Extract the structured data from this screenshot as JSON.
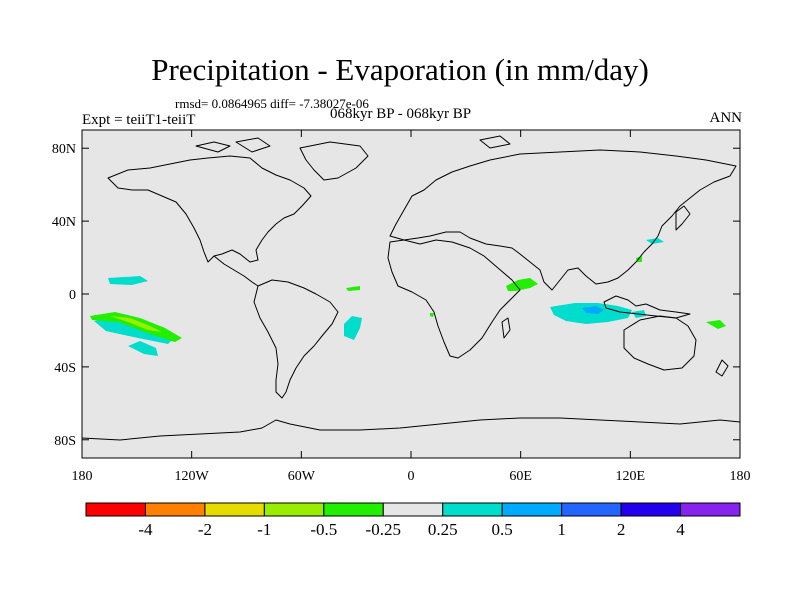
{
  "title": "Precipitation - Evaporation (in mm/day)",
  "stats_line": "rmsd= 0.0864965 diff= -7.38027e-06",
  "period_line": "068kyr BP - 068kyr BP",
  "experiment": "Expt = teiiT1-teiiT",
  "season": "ANN",
  "map": {
    "background_color": "#e6e6e6",
    "lon_ticks": [
      "180",
      "120W",
      "60W",
      "0",
      "60E",
      "120E",
      "180"
    ],
    "lat_ticks": [
      "80N",
      "40N",
      "0",
      "40S",
      "80S"
    ]
  },
  "colorbar": {
    "colors": [
      "#ff0000",
      "#ff8000",
      "#e6dc00",
      "#99ee00",
      "#22ee00",
      "#e6e6e6",
      "#00ddcc",
      "#00aaff",
      "#2266ff",
      "#2200ee",
      "#8822ee"
    ],
    "labels": [
      "-4",
      "-2",
      "-1",
      "-0.5",
      "-0.25",
      "0.25",
      "0.5",
      "1",
      "2",
      "4"
    ]
  },
  "anomaly_colors": {
    "cyan": "#00ddcc",
    "light_blue": "#00aaff",
    "green": "#22ee00",
    "yellow_green": "#99ee00"
  }
}
